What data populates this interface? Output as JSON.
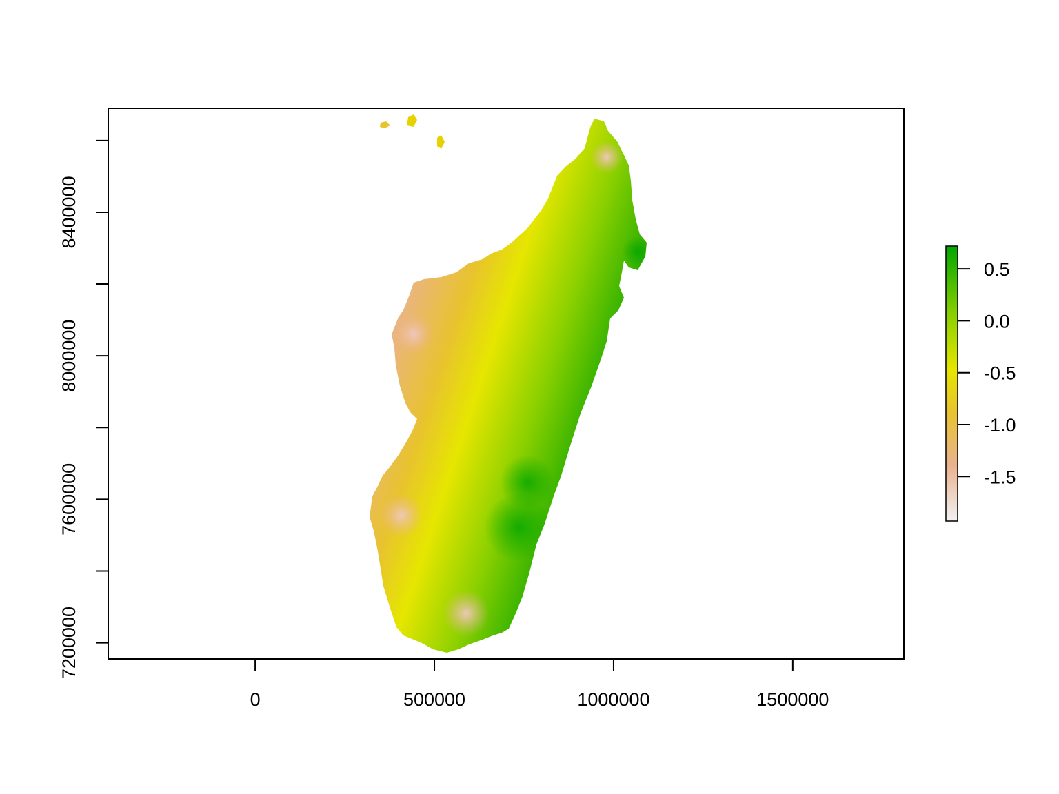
{
  "map": {
    "type": "raster",
    "x_axis": {
      "range": [
        -410000,
        1810000
      ],
      "ticks": [
        0,
        500000,
        1000000,
        1500000
      ],
      "tick_labels": [
        "0",
        "500000",
        "1000000",
        "1500000"
      ]
    },
    "y_axis": {
      "range": [
        7155000,
        8690000
      ],
      "ticks": [
        7200000,
        7400000,
        7600000,
        7800000,
        8000000,
        8200000,
        8400000,
        8600000
      ],
      "tick_labels": [
        "7200000",
        "",
        "7600000",
        "",
        "8000000",
        "",
        "8400000",
        ""
      ]
    },
    "legend": {
      "placement": "right",
      "range": [
        -1.93,
        0.72
      ],
      "ticks": [
        0.5,
        0.0,
        -0.5,
        -1.0,
        -1.5
      ],
      "tick_labels": [
        "0.5",
        "0.0",
        "-0.5",
        "-1.0",
        "-1.5"
      ],
      "colors": [
        "#F2F2F2",
        "#EBB28F",
        "#E8C32E",
        "#E6E600",
        "#8BD000",
        "#00A600"
      ]
    }
  }
}
